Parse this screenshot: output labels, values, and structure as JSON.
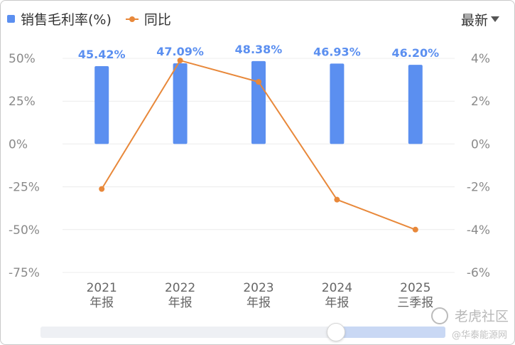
{
  "legend": {
    "bar_label": "销售毛利率(%)",
    "line_label": "同比"
  },
  "period_selector": {
    "label": "最新"
  },
  "watermark": {
    "name": "老虎社区",
    "sub": "@华泰能源网"
  },
  "colors": {
    "bar": "#5b8ff0",
    "line": "#e8883a",
    "grid": "#ececec"
  },
  "chart_data": {
    "type": "bar+line",
    "categories": [
      [
        "2021",
        "年报"
      ],
      [
        "2022",
        "年报"
      ],
      [
        "2023",
        "年报"
      ],
      [
        "2024",
        "年报"
      ],
      [
        "2025",
        "三季报"
      ]
    ],
    "series": [
      {
        "name": "销售毛利率(%)",
        "type": "bar",
        "axis": "left",
        "values": [
          45.42,
          47.09,
          48.38,
          46.93,
          46.2
        ],
        "labels": [
          "45.42%",
          "47.09%",
          "48.38%",
          "46.93%",
          "46.20%"
        ]
      },
      {
        "name": "同比",
        "type": "line",
        "axis": "right",
        "values": [
          -2.1,
          3.9,
          2.9,
          -2.6,
          -4.0
        ]
      }
    ],
    "y_left": {
      "min": -75,
      "max": 50,
      "ticks": [
        50,
        25,
        0,
        -25,
        -50,
        -75
      ],
      "tick_labels": [
        "50%",
        "25%",
        "0%",
        "-25%",
        "-50%",
        "-75%"
      ]
    },
    "y_right": {
      "min": -6,
      "max": 4,
      "ticks": [
        4,
        2,
        0,
        -2,
        -4,
        -6
      ],
      "tick_labels": [
        "4%",
        "2%",
        "0%",
        "-2%",
        "-4%",
        "-6%"
      ]
    },
    "grid": true,
    "legend_position": "top-left"
  }
}
